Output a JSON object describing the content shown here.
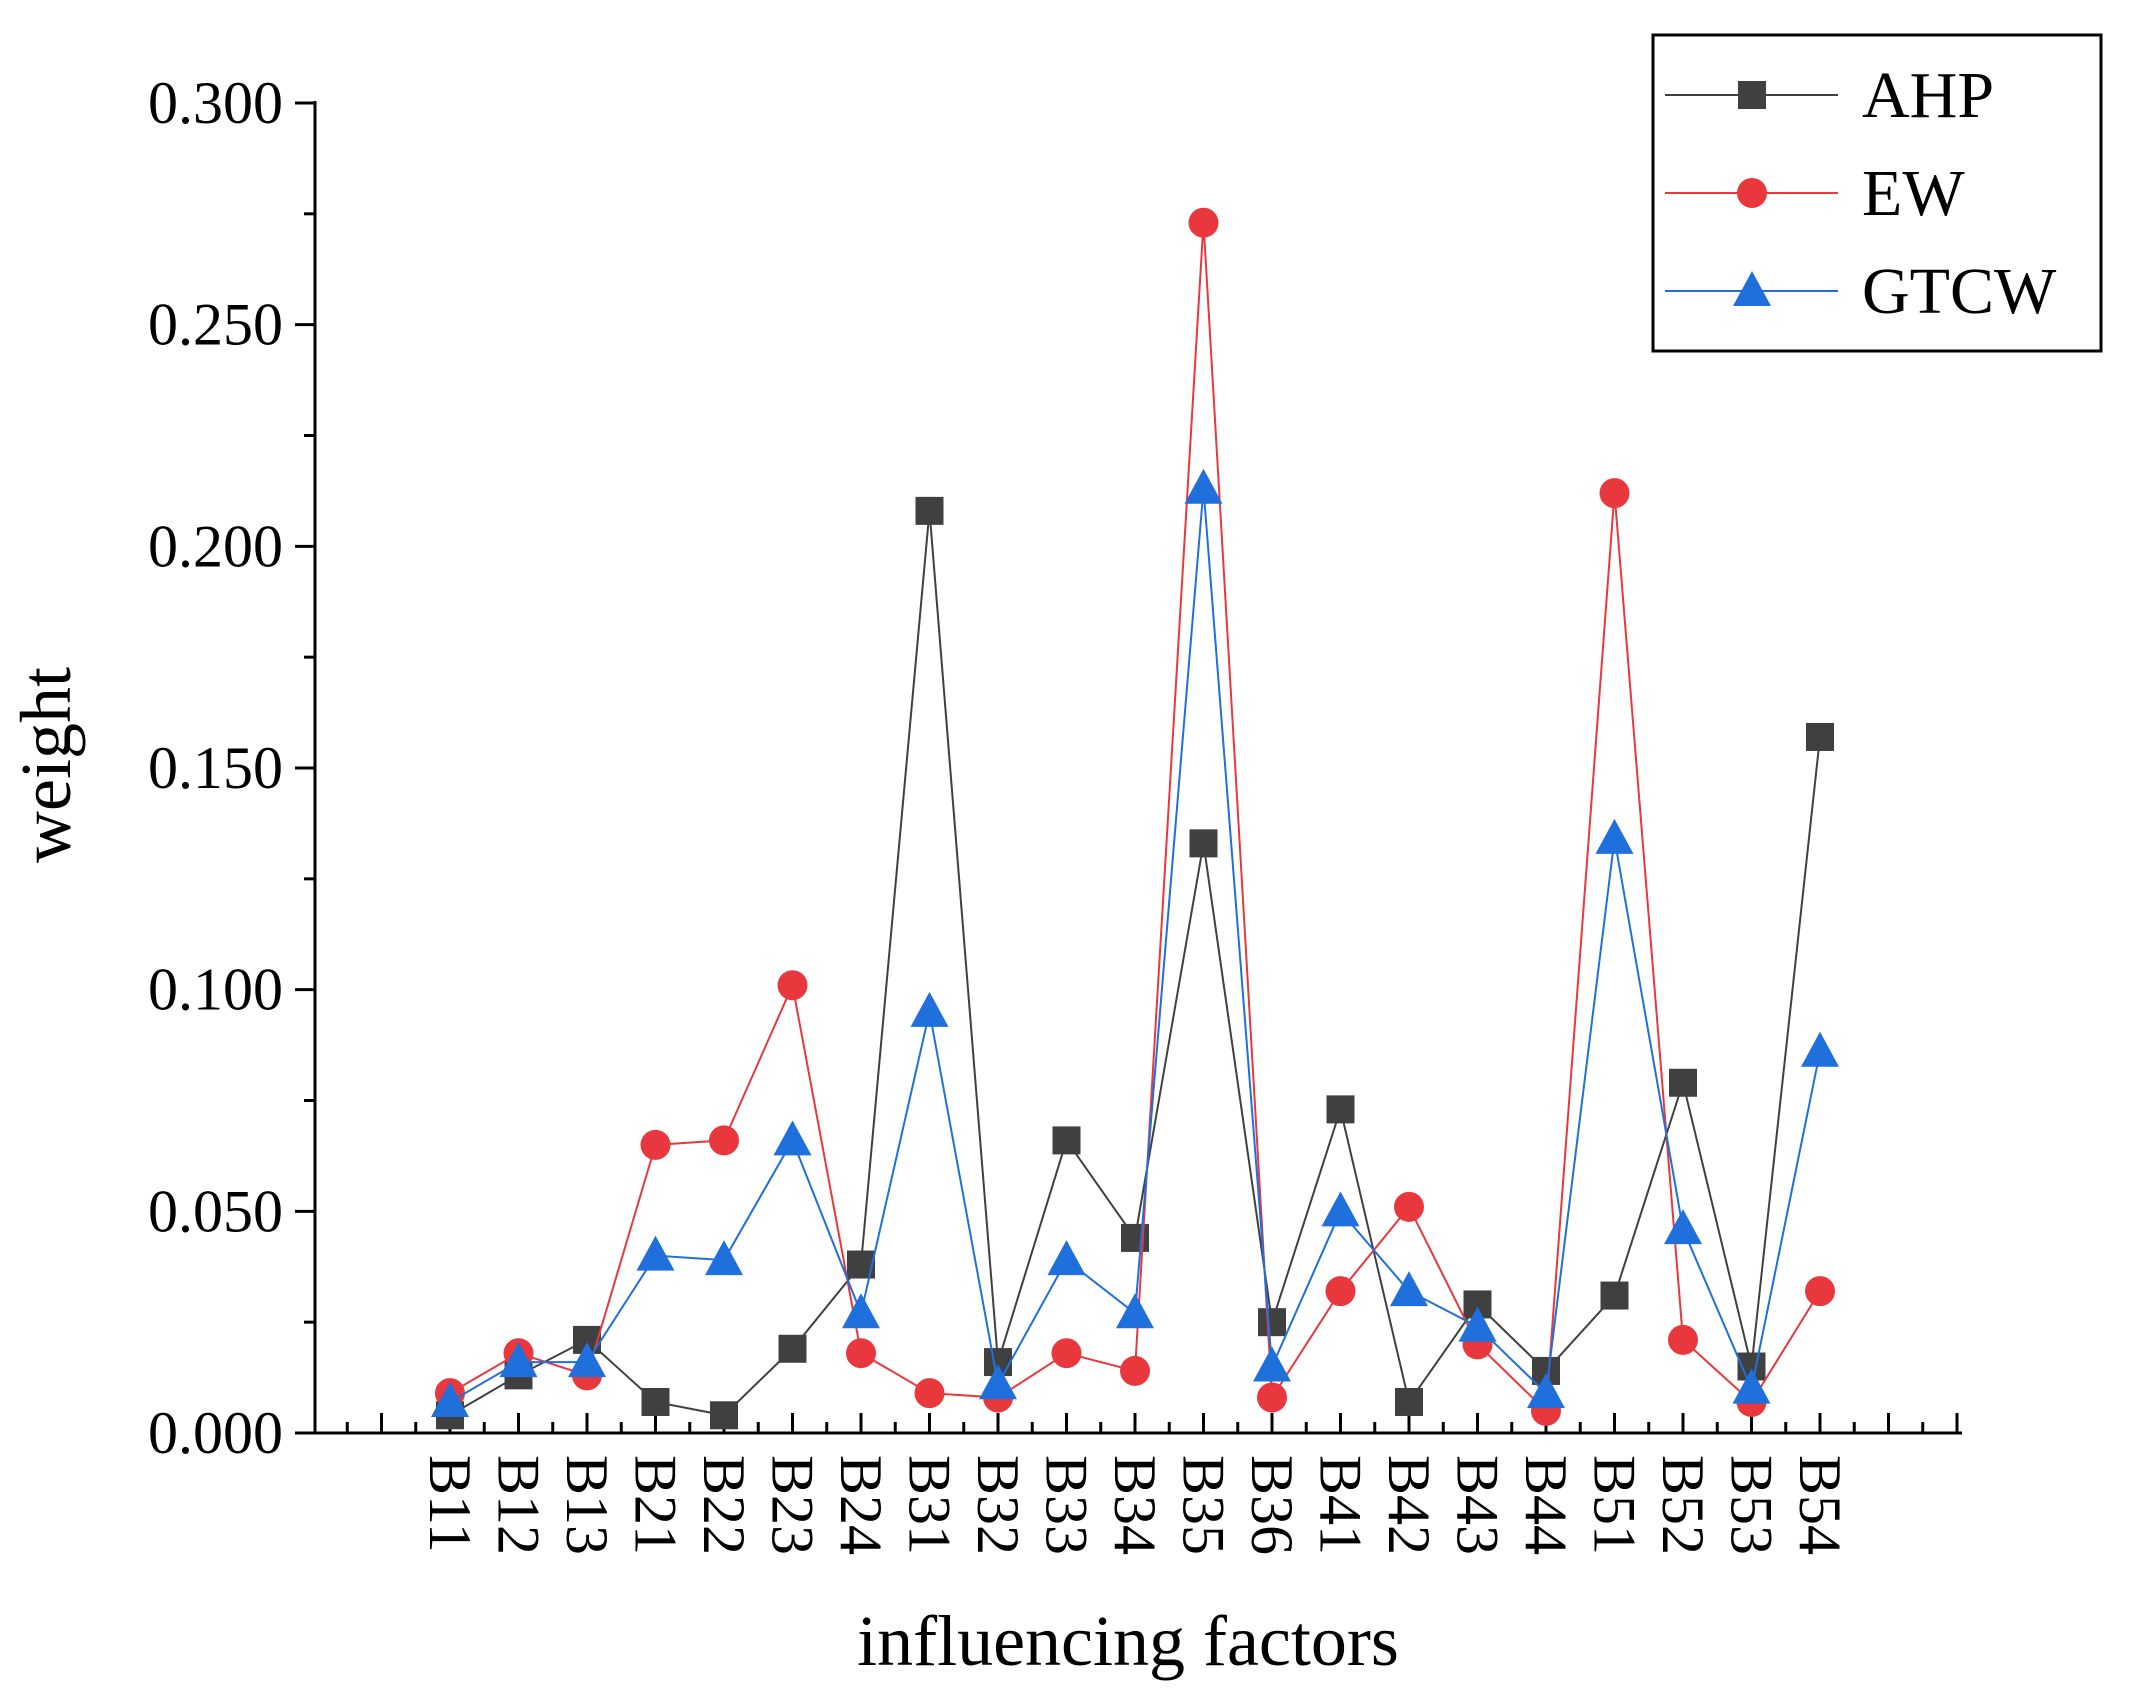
{
  "chart_data": {
    "type": "line",
    "title": "",
    "xlabel": "influencing factors",
    "ylabel": "weight",
    "ylim": [
      0,
      0.3
    ],
    "yticks": [
      "0.000",
      "0.050",
      "0.100",
      "0.150",
      "0.200",
      "0.250",
      "0.300"
    ],
    "yticks_values": [
      0,
      0.05,
      0.1,
      0.15,
      0.2,
      0.25,
      0.3
    ],
    "categories": [
      "B11",
      "B12",
      "B13",
      "B21",
      "B22",
      "B23",
      "B24",
      "B31",
      "B32",
      "B33",
      "B34",
      "B35",
      "B36",
      "B41",
      "B42",
      "B43",
      "B44",
      "B51",
      "B52",
      "B53",
      "B54"
    ],
    "legend_position": "top-right",
    "grid": false,
    "series": [
      {
        "name": "AHP",
        "color": "#404040",
        "marker": "square",
        "values": [
          0.004,
          0.013,
          0.021,
          0.007,
          0.004,
          0.019,
          0.038,
          0.208,
          0.016,
          0.066,
          0.044,
          0.133,
          0.025,
          0.073,
          0.007,
          0.029,
          0.014,
          0.031,
          0.079,
          0.015,
          0.157
        ]
      },
      {
        "name": "EW",
        "color": "#e8383d",
        "marker": "circle",
        "values": [
          0.009,
          0.018,
          0.013,
          0.065,
          0.066,
          0.101,
          0.018,
          0.009,
          0.008,
          0.018,
          0.014,
          0.273,
          0.008,
          0.032,
          0.051,
          0.02,
          0.005,
          0.212,
          0.021,
          0.007,
          0.032
        ]
      },
      {
        "name": "GTCW",
        "color": "#1f6fdc",
        "marker": "triangle",
        "values": [
          0.007,
          0.016,
          0.016,
          0.04,
          0.039,
          0.066,
          0.027,
          0.095,
          0.011,
          0.039,
          0.027,
          0.213,
          0.015,
          0.05,
          0.032,
          0.024,
          0.009,
          0.134,
          0.046,
          0.01,
          0.086
        ]
      }
    ]
  }
}
